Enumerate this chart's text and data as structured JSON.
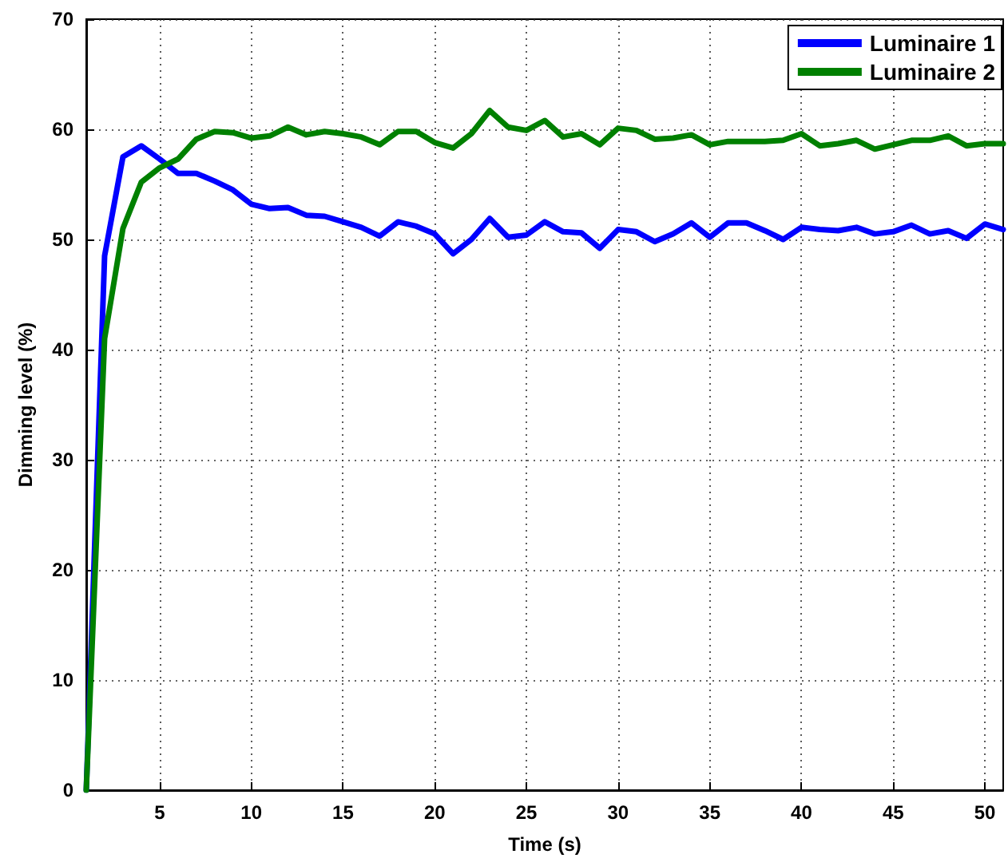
{
  "chart_data": {
    "type": "line",
    "xlabel": "Time (s)",
    "ylabel": "Dimming level (%)",
    "x": [
      1,
      2,
      3,
      4,
      5,
      6,
      7,
      8,
      9,
      10,
      11,
      12,
      13,
      14,
      15,
      16,
      17,
      18,
      19,
      20,
      21,
      22,
      23,
      24,
      25,
      26,
      27,
      28,
      29,
      30,
      31,
      32,
      33,
      34,
      35,
      36,
      37,
      38,
      39,
      40,
      41,
      42,
      43,
      44,
      45,
      46,
      47,
      48,
      49,
      50,
      51
    ],
    "series": [
      {
        "name": "Luminaire 1",
        "color": "#0000ff",
        "values": [
          0,
          48.5,
          57.5,
          58.5,
          57.3,
          56,
          56,
          55.3,
          54.5,
          53.2,
          52.8,
          52.9,
          52.2,
          52.1,
          51.6,
          51.1,
          50.3,
          51.6,
          51.2,
          50.5,
          48.7,
          50,
          51.9,
          50.2,
          50.4,
          51.6,
          50.7,
          50.6,
          49.2,
          50.9,
          50.7,
          49.8,
          50.5,
          51.5,
          50.2,
          51.5,
          51.5,
          50.8,
          50,
          51.1,
          50.9,
          50.8,
          51.1,
          50.5,
          50.7,
          51.3,
          50.5,
          50.8,
          50.1,
          51.4,
          50.9
        ]
      },
      {
        "name": "Luminaire 2",
        "color": "#008000",
        "values": [
          0,
          41,
          51,
          55.2,
          56.5,
          57.3,
          59.1,
          59.8,
          59.7,
          59.2,
          59.4,
          60.2,
          59.5,
          59.8,
          59.6,
          59.3,
          58.6,
          59.8,
          59.8,
          58.8,
          58.3,
          59.6,
          61.7,
          60.2,
          59.9,
          60.8,
          59.3,
          59.6,
          58.6,
          60.1,
          59.9,
          59.1,
          59.2,
          59.5,
          58.6,
          58.9,
          58.9,
          58.9,
          59,
          59.6,
          58.5,
          58.7,
          59,
          58.2,
          58.6,
          59,
          59,
          59.4,
          58.5,
          58.7,
          58.7
        ]
      }
    ],
    "xlim": [
      1,
      51
    ],
    "xticks": [
      5,
      10,
      15,
      20,
      25,
      30,
      35,
      40,
      45,
      50
    ],
    "ylim": [
      0,
      70
    ],
    "yticks": [
      0,
      10,
      20,
      30,
      40,
      50,
      60,
      70
    ],
    "grid": true,
    "legend": "top right",
    "marker": "none",
    "line_style": "solid"
  }
}
